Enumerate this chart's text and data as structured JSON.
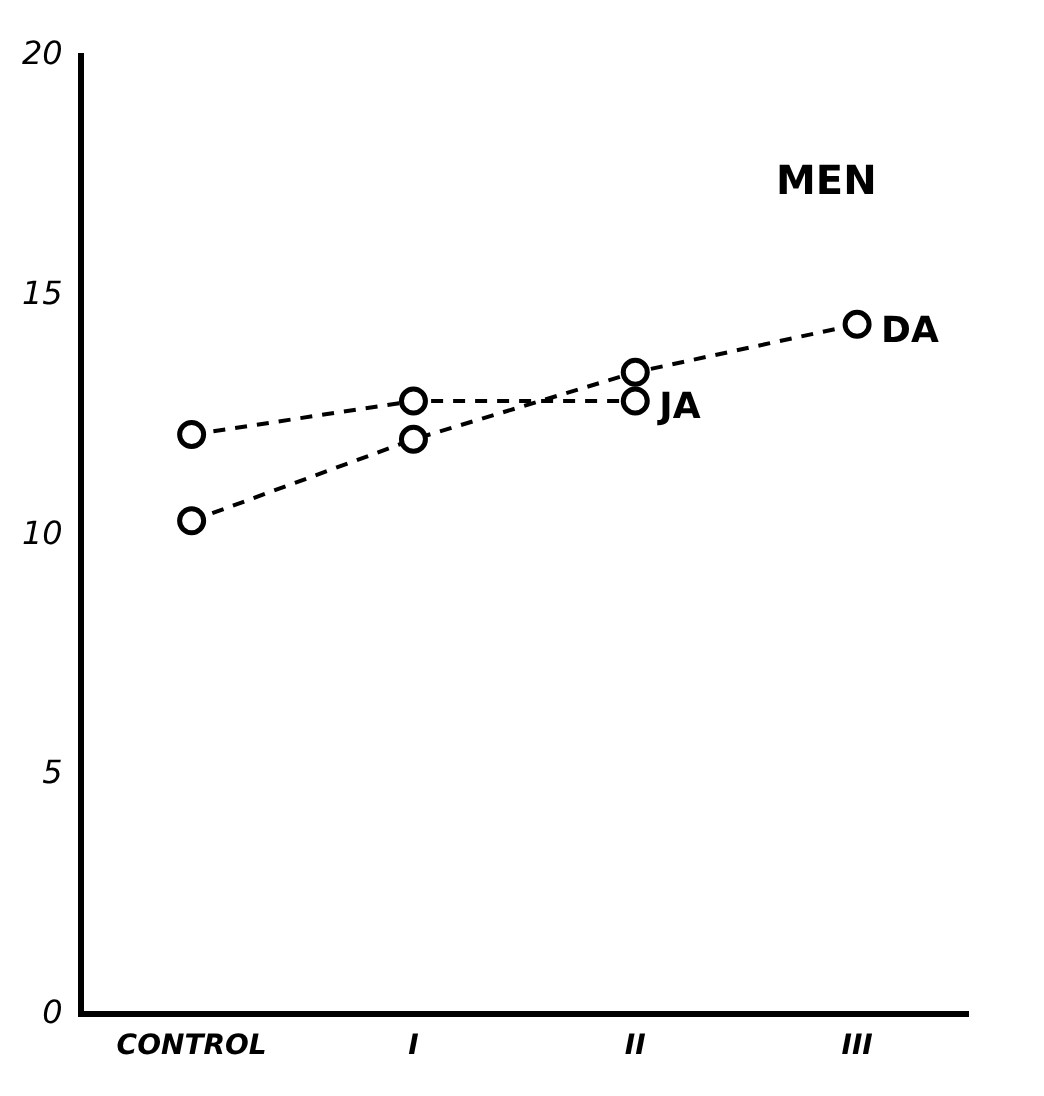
{
  "chart_data": {
    "type": "line",
    "title": "MEN",
    "categories": [
      "CONTROL",
      "I",
      "II",
      "III"
    ],
    "series": [
      {
        "name": "JA",
        "color": "#000000",
        "values": [
          12.1,
          12.8,
          12.8,
          null
        ]
      },
      {
        "name": "DA",
        "color": "#000000",
        "values": [
          10.3,
          12.0,
          13.4,
          14.4
        ]
      }
    ],
    "ylim": [
      0,
      20
    ],
    "yticks": [
      0,
      5,
      10,
      15,
      20
    ],
    "grid": false,
    "legend": false,
    "marker": "circle",
    "line_style": "dashed"
  }
}
